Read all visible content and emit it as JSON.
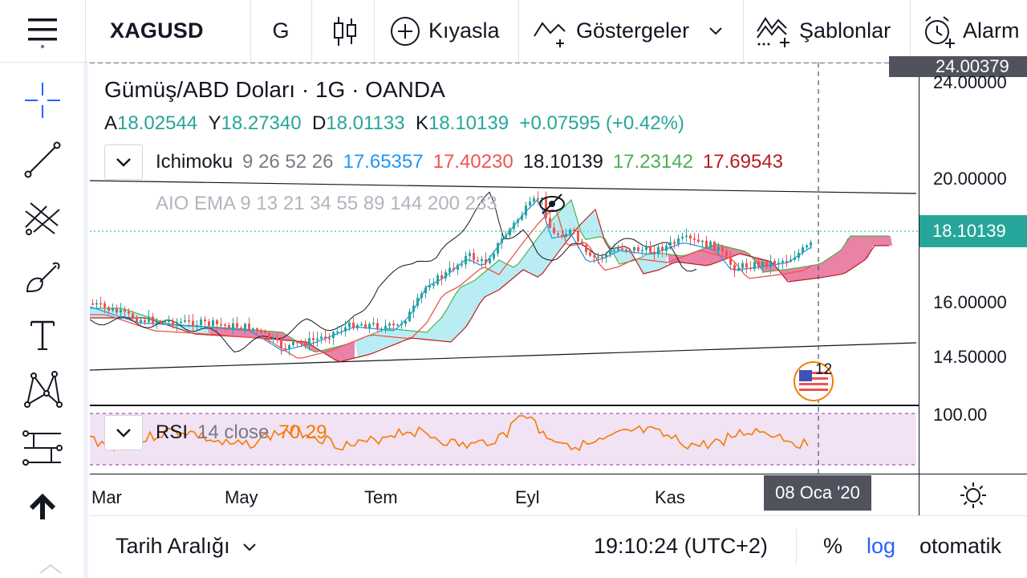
{
  "toolbar": {
    "symbol": "XAGUSD",
    "interval": "G",
    "compare_label": "Kıyasla",
    "indicators_label": "Göstergeler",
    "templates_label": "Şablonlar",
    "alarm_label": "Alarm"
  },
  "chart": {
    "title": "Gümüş/ABD Doları · 1G · OANDA",
    "ohlc": {
      "open_label": "A",
      "open": "18.02544",
      "high_label": "Y",
      "high": "18.27340",
      "low_label": "D",
      "low": "18.01133",
      "close_label": "K",
      "close": "18.10139",
      "change": "+0.07595 (+0.42%)"
    },
    "ichimoku": {
      "name": "Ichimoku",
      "params": "9 26 52 26",
      "v1": "17.65357",
      "v2": "17.40230",
      "v3": "18.10139",
      "v4": "17.23142",
      "v5": "17.69543",
      "c1": "#2196f3",
      "c2": "#ef5350",
      "c3": "#131722",
      "c4": "#4caf50",
      "c5": "#b71c1c"
    },
    "aio_ema": "AIO EMA 9 13 21 34 55 89 144 200 233",
    "rsi": {
      "name": "RSI",
      "params": "14 close",
      "value": "70.29",
      "color": "#f57c00"
    },
    "event_badge": "12",
    "price_axis": {
      "top_price": "24.00379",
      "top_partial": "24.00000",
      "ticks": [
        "20.00000",
        "16.00000",
        "14.50000"
      ],
      "current": "18.10139",
      "rsi_tick": "100.00"
    },
    "time_axis": [
      "Mar",
      "May",
      "Tem",
      "Eyl",
      "Kas"
    ],
    "crosshair_date": "08 Oca '20",
    "colors": {
      "up": "#26a69a",
      "down": "#ef5350",
      "cloud_up": "#80deea",
      "cloud_down": "#d81b60",
      "rsi_bg": "#e1bee7"
    }
  },
  "bottom": {
    "date_range": "Tarih Aralığı",
    "time": "19:10:24 (UTC+2)",
    "percent": "%",
    "log": "log",
    "auto": "otomatik"
  }
}
